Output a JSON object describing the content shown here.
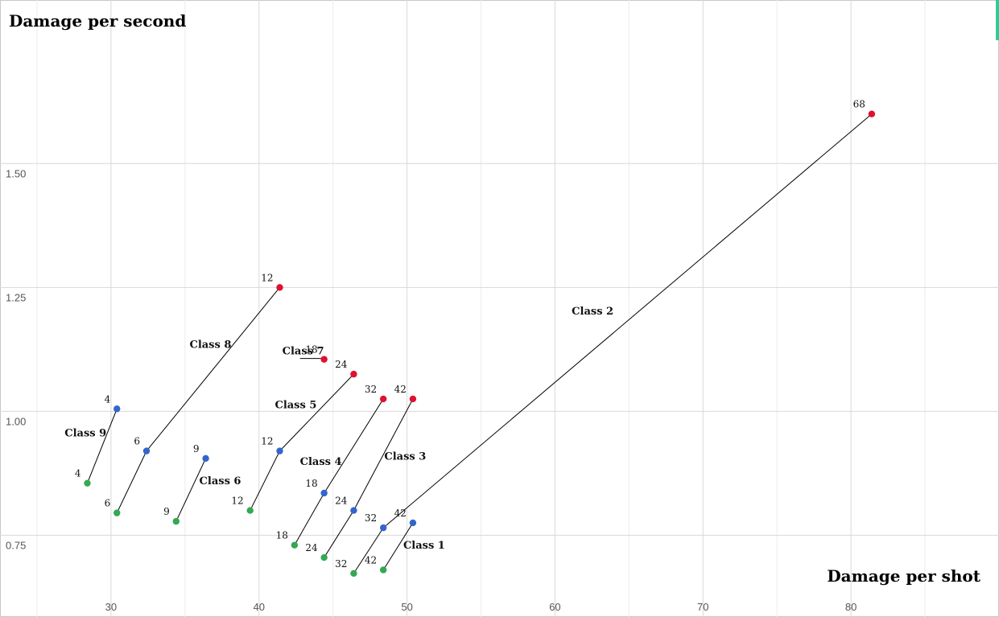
{
  "chart_data": {
    "type": "scatter",
    "title": "",
    "xlabel": "Damage per shot",
    "ylabel": "Damage per second",
    "xlim": [
      22.5,
      90
    ],
    "ylim": [
      0.585,
      1.83
    ],
    "x_ticks": [
      30,
      40,
      50,
      60,
      70,
      80
    ],
    "x_tick_labels": [
      "30",
      "40",
      "50",
      "60",
      "70",
      "80"
    ],
    "y_ticks": [
      0.75,
      1.0,
      1.25,
      1.5
    ],
    "y_tick_labels": [
      "0.75",
      "1.00",
      "1.25",
      "1.50"
    ],
    "x_minor_ticks": [
      25,
      35,
      45,
      55,
      65,
      75,
      85
    ],
    "grid": true,
    "legend": "none",
    "colors": {
      "green": "#34a853",
      "blue": "#3366cc",
      "red": "#e0102f",
      "accent": "#2ecc9a"
    },
    "classes": [
      {
        "name": "Class 1",
        "points": [
          {
            "x": 48.4,
            "y": 0.68,
            "label": "42",
            "color": "green"
          },
          {
            "x": 50.4,
            "y": 0.775,
            "label": "42",
            "color": "blue"
          }
        ]
      },
      {
        "name": "Class 2",
        "points": [
          {
            "x": 48.4,
            "y": 0.765,
            "label": "32",
            "color": "blue"
          },
          {
            "x": 81.4,
            "y": 1.6,
            "label": "68",
            "color": "red"
          }
        ]
      },
      {
        "name": "Class 3",
        "points": [
          {
            "x": 46.4,
            "y": 0.673,
            "label": "32",
            "color": "green"
          },
          {
            "x": 48.4,
            "y": 0.765,
            "label": "32",
            "color": "blue"
          },
          {
            "x": 44.4,
            "y": 0.705,
            "label": "24",
            "color": "green"
          },
          {
            "x": 46.4,
            "y": 0.8,
            "label": "24",
            "color": "blue"
          },
          {
            "x": 50.4,
            "y": 1.025,
            "label": "42",
            "color": "red"
          }
        ]
      },
      {
        "name": "Class 4",
        "points": [
          {
            "x": 42.4,
            "y": 0.73,
            "label": "18",
            "color": "green"
          },
          {
            "x": 44.4,
            "y": 0.835,
            "label": "18",
            "color": "blue"
          },
          {
            "x": 48.4,
            "y": 1.025,
            "label": "32",
            "color": "red"
          }
        ]
      },
      {
        "name": "Class 5",
        "points": [
          {
            "x": 39.4,
            "y": 0.8,
            "label": "12",
            "color": "green"
          },
          {
            "x": 41.4,
            "y": 0.92,
            "label": "12",
            "color": "blue"
          },
          {
            "x": 46.4,
            "y": 1.075,
            "label": "24",
            "color": "red"
          }
        ]
      },
      {
        "name": "Class 6",
        "points": [
          {
            "x": 34.4,
            "y": 0.778,
            "label": "9",
            "color": "green"
          },
          {
            "x": 36.4,
            "y": 0.905,
            "label": "9",
            "color": "blue"
          }
        ]
      },
      {
        "name": "Class 7",
        "points": [
          {
            "x": 44.4,
            "y": 1.105,
            "label": "18",
            "color": "red"
          }
        ]
      },
      {
        "name": "Class 8",
        "points": [
          {
            "x": 30.4,
            "y": 0.795,
            "label": "6",
            "color": "green"
          },
          {
            "x": 32.4,
            "y": 0.92,
            "label": "6",
            "color": "blue"
          },
          {
            "x": 41.4,
            "y": 1.25,
            "label": "12",
            "color": "red"
          }
        ]
      },
      {
        "name": "Class 9",
        "points": [
          {
            "x": 28.4,
            "y": 0.855,
            "label": "4",
            "color": "green"
          },
          {
            "x": 30.4,
            "y": 1.005,
            "label": "4",
            "color": "blue"
          }
        ]
      }
    ]
  }
}
